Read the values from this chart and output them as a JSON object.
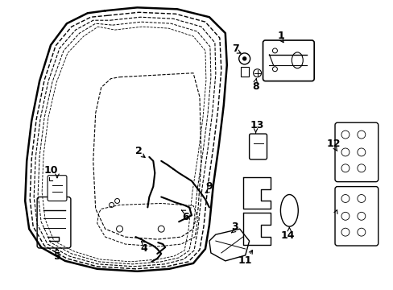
{
  "background_color": "#ffffff",
  "line_color": "#000000",
  "fig_width": 4.89,
  "fig_height": 3.6,
  "dpi": 100,
  "label_fontsize": 9
}
